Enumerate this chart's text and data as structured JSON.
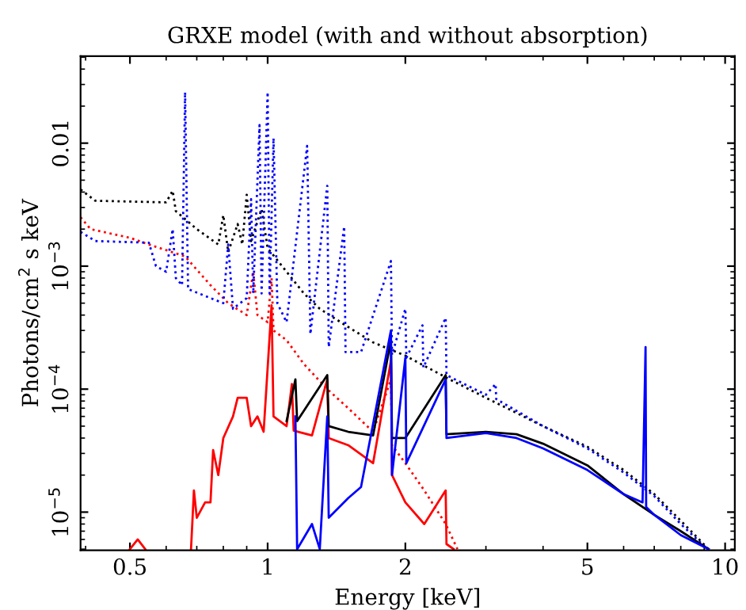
{
  "chart_data": {
    "type": "line",
    "title": "GRXE model (with and without absorption)",
    "xlabel": "Energy [keV]",
    "ylabel": "Photons/cm$^{2}$ s keV",
    "log": "xy",
    "grid": false,
    "xlim": [
      0.39,
      10.5
    ],
    "ylim": [
      4.9e-06,
      0.051
    ],
    "xticks": [
      0.5,
      1,
      2,
      5,
      10
    ],
    "yticks": [
      {
        "value": 0.01,
        "label": "0.01"
      },
      {
        "value": 0.001,
        "label": "10$^{−3}$"
      },
      {
        "value": 0.0001,
        "label": "10$^{−4}$"
      },
      {
        "value": 1e-05,
        "label": "10$^{−5}$"
      }
    ],
    "series": [
      {
        "color": "#000000",
        "line_style": "dotted",
        "x": [
          0.39,
          0.42,
          0.6,
          0.62,
          0.63,
          0.7,
          0.78,
          0.8,
          0.82,
          0.86,
          0.88,
          0.9,
          0.92,
          0.97,
          1.0,
          1.1,
          1.2,
          1.3,
          1.5,
          1.7,
          2.0,
          2.5,
          3,
          4,
          5,
          6,
          7,
          8,
          9.2
        ],
        "values": [
          0.0042,
          0.0034,
          0.0033,
          0.0041,
          0.0028,
          0.002,
          0.0015,
          0.0026,
          0.0013,
          0.0022,
          0.0015,
          0.0038,
          0.0016,
          0.0029,
          0.0014,
          0.0009,
          0.0006,
          0.00045,
          0.00032,
          0.00024,
          0.000187,
          0.00012,
          8.5e-05,
          5e-05,
          3.4e-05,
          2.2e-05,
          1.4e-05,
          8.5e-06,
          5e-06
        ]
      },
      {
        "color": "#ff0000",
        "line_style": "dotted",
        "x": [
          0.39,
          0.41,
          0.5,
          0.55,
          0.66,
          0.75,
          0.82,
          0.9,
          0.93,
          0.95,
          1.0,
          1.02,
          1.03,
          1.1,
          1.2,
          1.35,
          1.5,
          1.7,
          1.86,
          1.87,
          2.0,
          2.2,
          2.45,
          2.6
        ],
        "values": [
          0.0025,
          0.002,
          0.0017,
          0.0015,
          0.0012,
          0.0007,
          0.0005,
          0.0004,
          0.0009,
          0.0004,
          0.00035,
          0.0008,
          0.0003,
          0.00025,
          0.00016,
          0.0001,
          7e-05,
          4.5e-05,
          0.00012,
          3.5e-05,
          2.5e-05,
          1.5e-05,
          8e-06,
          5e-06
        ]
      },
      {
        "color": "#0000ff",
        "line_style": "dotted",
        "x": [
          0.39,
          0.42,
          0.55,
          0.57,
          0.6,
          0.62,
          0.63,
          0.65,
          0.66,
          0.67,
          0.75,
          0.8,
          0.82,
          0.84,
          0.9,
          0.92,
          0.93,
          0.96,
          0.97,
          1.0,
          1.01,
          1.03,
          1.05,
          1.1,
          1.22,
          1.24,
          1.35,
          1.36,
          1.47,
          1.48,
          1.6,
          1.86,
          1.87,
          2.0,
          2.01,
          2.18,
          2.19,
          2.45,
          2.46,
          3,
          3.15,
          3.16,
          4,
          5,
          6,
          7,
          8,
          9.2
        ],
        "values": [
          0.0019,
          0.0016,
          0.00155,
          0.001,
          0.0009,
          0.002,
          0.0008,
          0.0007,
          0.026,
          0.00065,
          0.00055,
          0.0005,
          0.0015,
          0.00045,
          0.00055,
          0.0035,
          0.0006,
          0.014,
          0.0006,
          0.026,
          0.0006,
          0.011,
          0.0005,
          0.00035,
          0.0095,
          0.00028,
          0.0045,
          0.00022,
          0.0021,
          0.0002,
          0.0002,
          0.0011,
          0.00019,
          0.00045,
          0.00018,
          0.00033,
          0.00015,
          0.00038,
          0.00013,
          9e-05,
          0.00011,
          8.3e-05,
          5e-05,
          3.3e-05,
          2.1e-05,
          1.35e-05,
          8e-06,
          4.9e-06
        ]
      },
      {
        "color": "#ff0000",
        "line_style": "solid",
        "x": [
          0.5,
          0.52,
          0.54,
          0.6,
          0.68,
          0.69,
          0.7,
          0.73,
          0.75,
          0.76,
          0.78,
          0.8,
          0.84,
          0.86,
          0.9,
          0.92,
          0.95,
          0.98,
          1.02,
          1.03,
          1.1,
          1.13,
          1.14,
          1.25,
          1.35,
          1.36,
          1.5,
          1.7,
          1.86,
          1.87,
          2.0,
          2.2,
          2.45,
          2.46,
          2.55
        ],
        "values": [
          5e-06,
          6e-06,
          5e-06,
          null,
          5e-06,
          1.5e-05,
          9e-06,
          1.2e-05,
          1.2e-05,
          3.2e-05,
          2e-05,
          4e-05,
          6e-05,
          8.5e-05,
          8.5e-05,
          5e-05,
          6e-05,
          4.5e-05,
          0.00048,
          6e-05,
          5e-05,
          0.00011,
          4.6e-05,
          4.2e-05,
          0.00012,
          4e-05,
          3.5e-05,
          2.5e-05,
          0.00017,
          2e-05,
          1.2e-05,
          8e-06,
          1.5e-05,
          5.5e-06,
          5e-06
        ]
      },
      {
        "color": "#000000",
        "line_style": "solid",
        "x": [
          1.1,
          1.15,
          1.16,
          1.35,
          1.36,
          1.5,
          1.7,
          1.86,
          1.87,
          2.0,
          2.45,
          2.46,
          3,
          3.5,
          4,
          5,
          6,
          7,
          8,
          9.2
        ],
        "values": [
          5.5e-05,
          0.00012,
          5.5e-05,
          0.00013,
          5e-05,
          4.5e-05,
          4.2e-05,
          0.00025,
          4e-05,
          4e-05,
          0.00013,
          4.3e-05,
          4.5e-05,
          4.3e-05,
          3.6e-05,
          2.4e-05,
          1.4e-05,
          9.5e-06,
          7e-06,
          5e-06
        ]
      },
      {
        "color": "#0000ff",
        "line_style": "solid",
        "x": [
          1.15,
          1.16,
          1.25,
          1.3,
          1.35,
          1.36,
          1.5,
          1.6,
          1.86,
          1.87,
          2.0,
          2.01,
          2.45,
          2.46,
          3,
          3.5,
          4,
          5,
          6,
          6.6,
          6.7,
          6.72,
          7,
          8,
          9.2
        ],
        "values": [
          6e-05,
          5e-06,
          8e-06,
          5e-06,
          6e-05,
          9e-06,
          1.3e-05,
          1.6e-05,
          0.0003,
          2e-05,
          0.00018,
          2.5e-05,
          0.00012,
          4e-05,
          4.4e-05,
          4e-05,
          3.3e-05,
          2.2e-05,
          1.4e-05,
          1.2e-05,
          0.00022,
          1.1e-05,
          9.5e-06,
          6.5e-06,
          5e-06
        ]
      }
    ]
  }
}
